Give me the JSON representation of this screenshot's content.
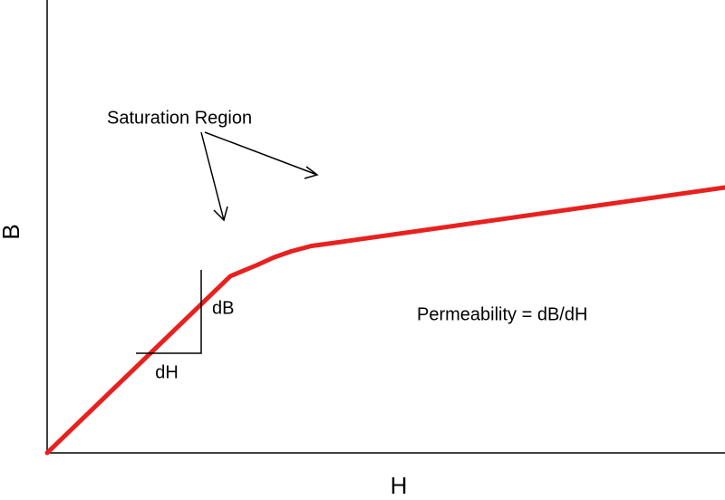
{
  "chart_data": {
    "type": "line",
    "title": "",
    "xlabel": "H",
    "ylabel": "B",
    "grid": false,
    "legend": "none",
    "line_color": "#e8211f",
    "series": [
      {
        "x": [
          0,
          27,
          31,
          33.5,
          36,
          39,
          42,
          100
        ],
        "y": [
          0,
          39,
          41.5,
          43.2,
          44.5,
          45.7,
          46.3,
          58.6
        ]
      }
    ],
    "annotations": {
      "saturation": "Saturation Region",
      "dB": "dB",
      "dH": "dH",
      "permeability": "Permeability = dB/dH"
    }
  }
}
